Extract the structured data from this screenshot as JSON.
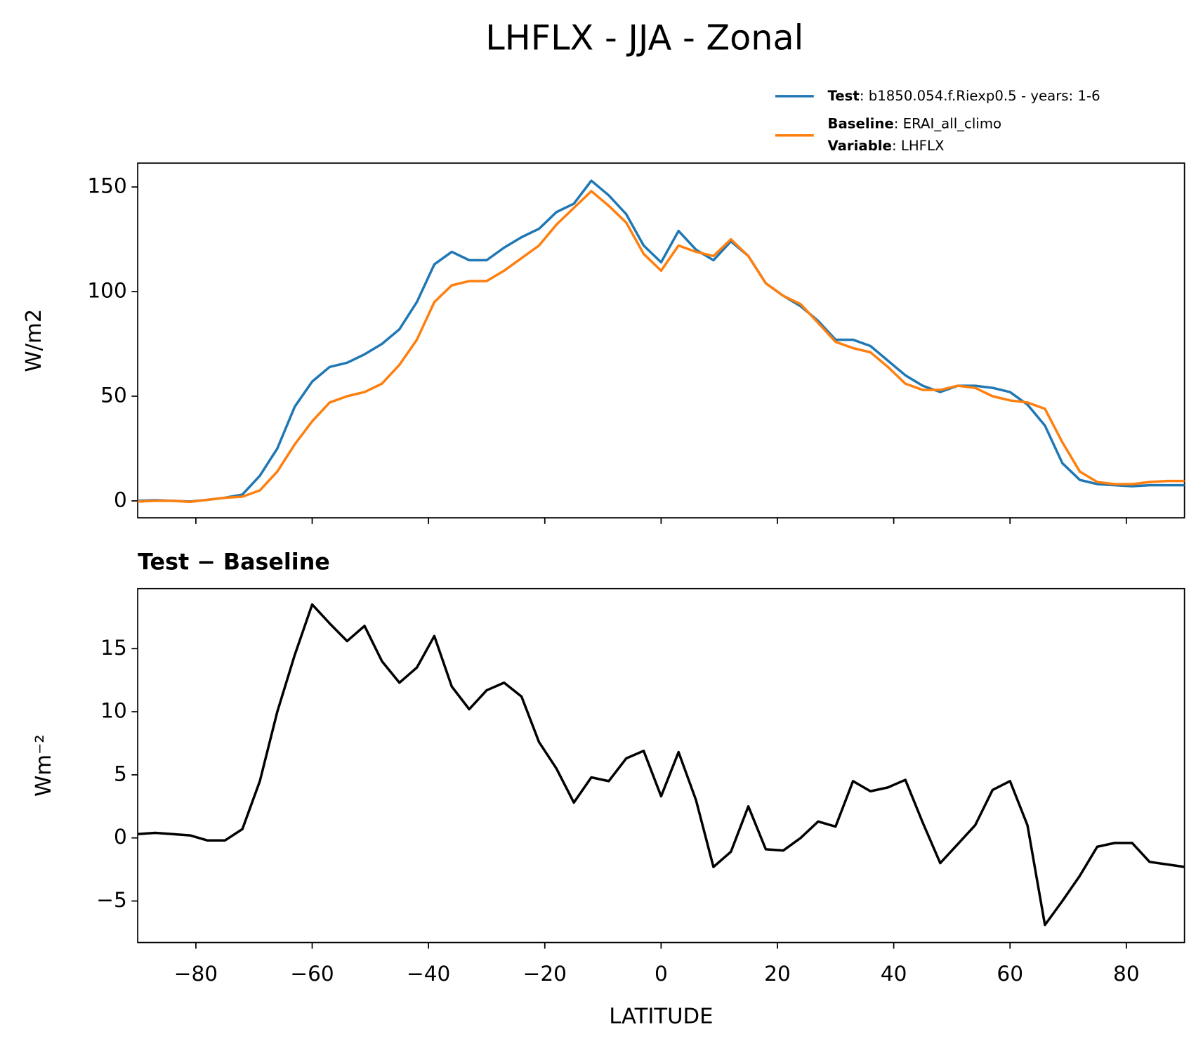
{
  "title": "LHFLX - JJA - Zonal",
  "chart_data": [
    {
      "type": "line",
      "ylabel": "W/m2",
      "x": [
        -90,
        -87,
        -84,
        -81,
        -78,
        -75,
        -72,
        -69,
        -66,
        -63,
        -60,
        -57,
        -54,
        -51,
        -48,
        -45,
        -42,
        -39,
        -36,
        -33,
        -30,
        -27,
        -24,
        -21,
        -18,
        -15,
        -12,
        -9,
        -6,
        -3,
        0,
        3,
        6,
        9,
        12,
        15,
        18,
        21,
        24,
        27,
        30,
        33,
        36,
        39,
        42,
        45,
        48,
        51,
        54,
        57,
        60,
        63,
        66,
        69,
        72,
        75,
        78,
        81,
        84,
        87,
        90
      ],
      "series": [
        {
          "name": "Test",
          "note": ": b1850.054.f.Riexp0.5 - years: 1-6",
          "color": "#1f77b4",
          "values": [
            0,
            0.3,
            0,
            -0.3,
            0.5,
            1.5,
            3,
            12,
            25,
            45,
            57,
            64,
            66,
            70,
            75,
            82,
            95,
            113,
            119,
            115,
            115,
            121,
            126,
            130,
            138,
            142,
            153,
            146,
            137,
            122,
            114,
            129,
            120,
            115,
            124,
            117,
            104,
            98,
            93,
            86,
            77,
            77,
            74,
            67,
            60,
            55,
            52,
            55,
            55,
            54,
            52,
            46,
            36,
            18,
            10,
            8,
            7.5,
            7,
            7.5,
            7.5,
            7.5
          ]
        },
        {
          "name": "Baseline",
          "note": ": ERAI_all_climo",
          "color": "#ff7f0e",
          "values": [
            -0.3,
            0,
            0,
            -0.5,
            0.5,
            1.5,
            2,
            5,
            14,
            27,
            38,
            47,
            50,
            52,
            56,
            65,
            77,
            95,
            103,
            105,
            105,
            110,
            116,
            122,
            132,
            140,
            148,
            141,
            133,
            118,
            110,
            122,
            119,
            117,
            125,
            117,
            104,
            98,
            94,
            85,
            76,
            73,
            71,
            64,
            56,
            53,
            53,
            55,
            54,
            50,
            48,
            47,
            44,
            28,
            14,
            9,
            8,
            8,
            9,
            9.5,
            9.5
          ]
        }
      ],
      "legend_extra": {
        "name": "Variable",
        "note": ": LHFLX"
      },
      "xlim": [
        -90,
        90
      ],
      "xticks": [
        -80,
        -60,
        -40,
        -20,
        0,
        20,
        40,
        60,
        80
      ],
      "ylim": [
        -8.1,
        161.4
      ],
      "yticks": [
        0,
        50,
        100,
        150
      ]
    },
    {
      "type": "line",
      "title": "Test − Baseline",
      "ylabel": "Wm⁻²",
      "xlabel": "LATITUDE",
      "color": "#000000",
      "x": [
        -90,
        -87,
        -84,
        -81,
        -78,
        -75,
        -72,
        -69,
        -66,
        -63,
        -60,
        -57,
        -54,
        -51,
        -48,
        -45,
        -42,
        -39,
        -36,
        -33,
        -30,
        -27,
        -24,
        -21,
        -18,
        -15,
        -12,
        -9,
        -6,
        -3,
        0,
        3,
        6,
        9,
        12,
        15,
        18,
        21,
        24,
        27,
        30,
        33,
        36,
        39,
        42,
        45,
        48,
        51,
        54,
        57,
        60,
        63,
        66,
        69,
        72,
        75,
        78,
        81,
        84,
        87,
        90
      ],
      "values": [
        0.3,
        0.4,
        0.3,
        0.2,
        -0.2,
        -0.2,
        0.7,
        4.5,
        10,
        14.5,
        18.5,
        17,
        15.6,
        16.8,
        14,
        12.3,
        13.5,
        16,
        12,
        10.2,
        11.7,
        12.3,
        11.2,
        7.6,
        5.5,
        2.8,
        4.8,
        4.5,
        6.3,
        6.9,
        3.3,
        6.8,
        3,
        -2.3,
        -1.1,
        2.5,
        -0.9,
        -1,
        0,
        1.3,
        0.9,
        4.5,
        3.7,
        4,
        4.6,
        1.2,
        -2,
        -0.5,
        1,
        3.8,
        4.5,
        1,
        -6.9,
        -5,
        -3,
        -0.7,
        -0.4,
        -0.4,
        -1.9,
        -2.1,
        -2.3
      ],
      "xlim": [
        -90,
        90
      ],
      "xticks": [
        {
          "value": -80,
          "label": "−80"
        },
        {
          "value": -60,
          "label": "−60"
        },
        {
          "value": -40,
          "label": "−40"
        },
        {
          "value": -20,
          "label": "−20"
        },
        0,
        20,
        40,
        60,
        80
      ],
      "ylim": [
        -8.29,
        19.76
      ],
      "yticks": [
        {
          "value": -5,
          "label": "−5"
        },
        0,
        5,
        10,
        15
      ]
    }
  ]
}
